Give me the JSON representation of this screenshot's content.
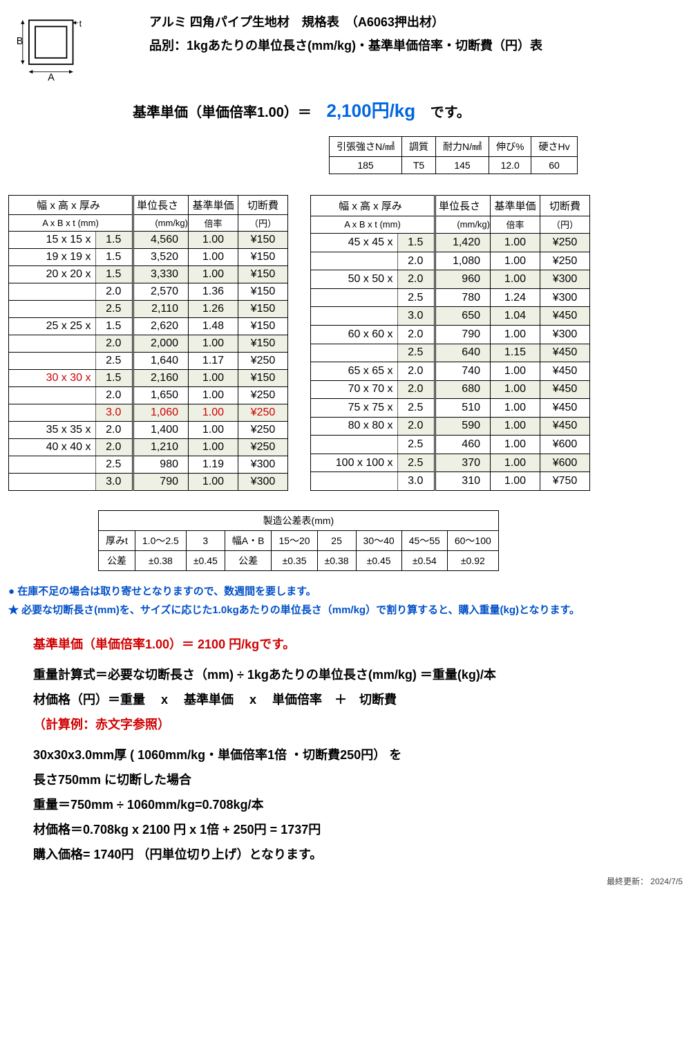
{
  "title_line1": "アルミ 四角パイプ生地材　規格表　（A6063押出材）",
  "title_line2": "品別：1kgあたりの単位長さ(mm/kg)・基準単価倍率・切断費（円）表",
  "base_price_label_prefix": "基準単価（単価倍率1.00）＝",
  "base_price_value": "2,100円/kg",
  "base_price_label_suffix": "です。",
  "diagram_labels": {
    "A": "A",
    "B": "B",
    "t": "t"
  },
  "properties": {
    "headers": [
      "引張強さN/㎟",
      "調質",
      "耐力N/㎟",
      "伸び%",
      "硬さHv"
    ],
    "values": [
      "185",
      "T5",
      "145",
      "12.0",
      "60"
    ]
  },
  "table_headers": {
    "size": "幅 x 高 x 厚み",
    "size_sub": "A x B x  t (mm)",
    "len": "単位長さ",
    "len_sub": "(mm/kg)",
    "rate": "基準単価",
    "rate_sub": "倍率",
    "cut": "切断費",
    "cut_sub": "（円）"
  },
  "left_rows": [
    {
      "size": "15 x 15 x",
      "thk": "1.5",
      "len": "4,560",
      "rate": "1.00",
      "cut": "¥150",
      "shade": true,
      "group": true
    },
    {
      "size": "19 x 19 x",
      "thk": "1.5",
      "len": "3,520",
      "rate": "1.00",
      "cut": "¥150",
      "group": true
    },
    {
      "size": "20 x 20 x",
      "thk": "1.5",
      "len": "3,330",
      "rate": "1.00",
      "cut": "¥150",
      "shade": true,
      "group": true
    },
    {
      "size": "",
      "thk": "2.0",
      "len": "2,570",
      "rate": "1.36",
      "cut": "¥150"
    },
    {
      "size": "",
      "thk": "2.5",
      "len": "2,110",
      "rate": "1.26",
      "cut": "¥150",
      "shade": true
    },
    {
      "size": "25 x 25 x",
      "thk": "1.5",
      "len": "2,620",
      "rate": "1.48",
      "cut": "¥150",
      "group": true
    },
    {
      "size": "",
      "thk": "2.0",
      "len": "2,000",
      "rate": "1.00",
      "cut": "¥150",
      "shade": true
    },
    {
      "size": "",
      "thk": "2.5",
      "len": "1,640",
      "rate": "1.17",
      "cut": "¥250"
    },
    {
      "size": "30 x 30 x",
      "thk": "1.5",
      "len": "2,160",
      "rate": "1.00",
      "cut": "¥150",
      "shade": true,
      "group": true,
      "size_red": true
    },
    {
      "size": "",
      "thk": "2.0",
      "len": "1,650",
      "rate": "1.00",
      "cut": "¥250"
    },
    {
      "size": "",
      "thk": "3.0",
      "len": "1,060",
      "rate": "1.00",
      "cut": "¥250",
      "shade": true,
      "row_red": true
    },
    {
      "size": "35 x 35 x",
      "thk": "2.0",
      "len": "1,400",
      "rate": "1.00",
      "cut": "¥250",
      "group": true
    },
    {
      "size": "40 x 40 x",
      "thk": "2.0",
      "len": "1,210",
      "rate": "1.00",
      "cut": "¥250",
      "shade": true,
      "group": true
    },
    {
      "size": "",
      "thk": "2.5",
      "len": "980",
      "rate": "1.19",
      "cut": "¥300"
    },
    {
      "size": "",
      "thk": "3.0",
      "len": "790",
      "rate": "1.00",
      "cut": "¥300",
      "shade": true
    }
  ],
  "right_rows": [
    {
      "size": "45 x 45 x",
      "thk": "1.5",
      "len": "1,420",
      "rate": "1.00",
      "cut": "¥250",
      "shade": true,
      "group": true
    },
    {
      "size": "",
      "thk": "2.0",
      "len": "1,080",
      "rate": "1.00",
      "cut": "¥250"
    },
    {
      "size": "50 x 50 x",
      "thk": "2.0",
      "len": "960",
      "rate": "1.00",
      "cut": "¥300",
      "shade": true,
      "group": true
    },
    {
      "size": "",
      "thk": "2.5",
      "len": "780",
      "rate": "1.24",
      "cut": "¥300"
    },
    {
      "size": "",
      "thk": "3.0",
      "len": "650",
      "rate": "1.04",
      "cut": "¥450",
      "shade": true
    },
    {
      "size": "60 x 60 x",
      "thk": "2.0",
      "len": "790",
      "rate": "1.00",
      "cut": "¥300",
      "group": true
    },
    {
      "size": "",
      "thk": "2.5",
      "len": "640",
      "rate": "1.15",
      "cut": "¥450",
      "shade": true
    },
    {
      "size": "65 x 65 x",
      "thk": "2.0",
      "len": "740",
      "rate": "1.00",
      "cut": "¥450",
      "group": true
    },
    {
      "size": "70 x 70 x",
      "thk": "2.0",
      "len": "680",
      "rate": "1.00",
      "cut": "¥450",
      "shade": true,
      "group": true
    },
    {
      "size": "75 x 75 x",
      "thk": "2.5",
      "len": "510",
      "rate": "1.00",
      "cut": "¥450",
      "group": true
    },
    {
      "size": "80 x 80 x",
      "thk": "2.0",
      "len": "590",
      "rate": "1.00",
      "cut": "¥450",
      "shade": true,
      "group": true
    },
    {
      "size": "",
      "thk": "2.5",
      "len": "460",
      "rate": "1.00",
      "cut": "¥600"
    },
    {
      "size": "100 x 100 x",
      "thk": "2.5",
      "len": "370",
      "rate": "1.00",
      "cut": "¥600",
      "shade": true,
      "group": true
    },
    {
      "size": "",
      "thk": "3.0",
      "len": "310",
      "rate": "1.00",
      "cut": "¥750"
    }
  ],
  "tolerance": {
    "title": "製造公差表(mm)",
    "row1": [
      "厚みt",
      "1.0〜2.5",
      "3",
      "幅A・B",
      "15〜20",
      "25",
      "30〜40",
      "45〜55",
      "60〜100"
    ],
    "row2": [
      "公差",
      "±0.38",
      "±0.45",
      "公差",
      "±0.35",
      "±0.38",
      "±0.45",
      "±0.54",
      "±0.92"
    ]
  },
  "note1": "● 在庫不足の場合は取り寄せとなりますので、数週間を要します。",
  "note2": "★ 必要な切断長さ(mm)を、サイズに応じた1.0kgあたりの単位長さ（mm/kg）で割り算すると、購入重量(kg)となります。",
  "calc": {
    "red1": "基準単価（単価倍率1.00）＝ 2100 円/kgです。",
    "line1": "重量計算式＝必要な切断長さ（mm) ÷ 1kgあたりの単位長さ(mm/kg) ＝重量(kg)/本",
    "line2": "材価格（円）＝重量　 x 　基準単価　 x 　単価倍率　＋　切断費",
    "red2": "（計算例：赤文字参照）",
    "ex1": "30x30x3.0mm厚 ( 1060mm/kg・単価倍率1倍 ・切断費250円） を",
    "ex2": "長さ750mm に切断した場合",
    "ex3": "重量＝750mm ÷ 1060mm/kg=0.708kg/本",
    "ex4": "材価格＝0.708kg x 2100 円 x 1倍 + 250円 = 1737円",
    "ex5": "購入価格= 1740円 （円単位切り上げ）となります。"
  },
  "footer": "最終更新： 2024/7/5"
}
